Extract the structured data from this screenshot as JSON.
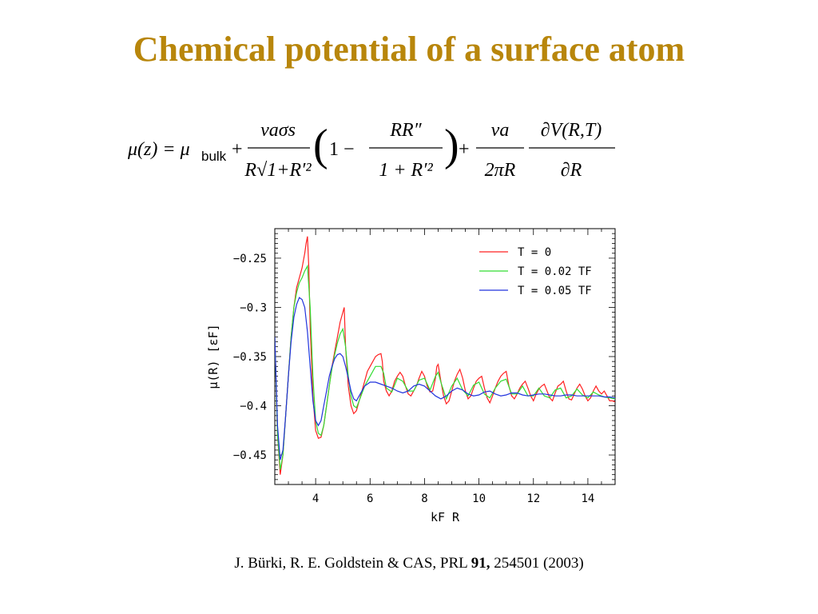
{
  "slide": {
    "title": "Chemical potential of a surface atom"
  },
  "equation": {
    "lhs": "μ(z) = μ",
    "bulk_sub": "bulk",
    "plus": "+",
    "frac1_num": "vaσs",
    "frac1_den": "R√1+R′²",
    "paren_open": "(",
    "one_minus": "1 −",
    "frac2_num": "RR″",
    "frac2_den": "1 + R′²",
    "paren_close": ")",
    "frac3_num": "va",
    "frac3_den": "2πR",
    "frac4_num": "∂V(R,T)",
    "frac4_den": "∂R"
  },
  "citation": {
    "authors": "J. Bürki, R. E. Goldstein & CAS, PRL ",
    "volume": "91,",
    "rest": " 254501 (2003)"
  },
  "chart_data": {
    "type": "line",
    "xlabel": "kF R",
    "ylabel": "μ(R) [εF]",
    "xlim": [
      2.5,
      15
    ],
    "ylim": [
      -0.48,
      -0.22
    ],
    "xticks": [
      4,
      6,
      8,
      10,
      12,
      14
    ],
    "yticks": [
      -0.25,
      -0.3,
      -0.35,
      -0.4,
      -0.45
    ],
    "ytick_labels": [
      "−0.25",
      "−0.3",
      "−0.35",
      "−0.4",
      "−0.45"
    ],
    "legend_position": "top-right",
    "series": [
      {
        "name": "T = 0",
        "color": "#ff2020",
        "x": [
          2.5,
          2.6,
          2.7,
          2.8,
          2.9,
          3.0,
          3.1,
          3.2,
          3.3,
          3.4,
          3.5,
          3.6,
          3.65,
          3.7,
          3.75,
          3.8,
          3.9,
          4.0,
          4.1,
          4.2,
          4.3,
          4.4,
          4.5,
          4.6,
          4.7,
          4.8,
          4.9,
          5.0,
          5.05,
          5.1,
          5.2,
          5.3,
          5.4,
          5.5,
          5.6,
          5.7,
          5.8,
          5.9,
          6.0,
          6.1,
          6.2,
          6.3,
          6.4,
          6.45,
          6.5,
          6.6,
          6.7,
          6.8,
          6.9,
          7.0,
          7.1,
          7.2,
          7.3,
          7.4,
          7.5,
          7.6,
          7.7,
          7.8,
          7.9,
          8.0,
          8.1,
          8.2,
          8.3,
          8.4,
          8.45,
          8.5,
          8.6,
          8.7,
          8.8,
          8.9,
          9.0,
          9.1,
          9.2,
          9.3,
          9.4,
          9.5,
          9.6,
          9.7,
          9.8,
          9.9,
          10.0,
          10.1,
          10.2,
          10.3,
          10.4,
          10.5,
          10.6,
          10.7,
          10.8,
          10.9,
          11.0,
          11.1,
          11.2,
          11.3,
          11.4,
          11.5,
          11.6,
          11.7,
          11.8,
          11.9,
          12.0,
          12.1,
          12.2,
          12.3,
          12.4,
          12.5,
          12.6,
          12.7,
          12.8,
          12.9,
          13.0,
          13.1,
          13.2,
          13.3,
          13.4,
          13.5,
          13.6,
          13.7,
          13.8,
          13.9,
          14.0,
          14.1,
          14.2,
          14.3,
          14.4,
          14.5,
          14.6,
          14.7,
          14.8,
          14.9,
          15.0
        ],
        "y": [
          -0.33,
          -0.43,
          -0.47,
          -0.45,
          -0.41,
          -0.37,
          -0.33,
          -0.3,
          -0.28,
          -0.27,
          -0.26,
          -0.245,
          -0.235,
          -0.228,
          -0.26,
          -0.32,
          -0.39,
          -0.425,
          -0.433,
          -0.432,
          -0.42,
          -0.4,
          -0.38,
          -0.36,
          -0.345,
          -0.33,
          -0.315,
          -0.305,
          -0.3,
          -0.34,
          -0.38,
          -0.4,
          -0.408,
          -0.405,
          -0.395,
          -0.385,
          -0.375,
          -0.365,
          -0.36,
          -0.355,
          -0.35,
          -0.348,
          -0.347,
          -0.355,
          -0.375,
          -0.385,
          -0.39,
          -0.385,
          -0.375,
          -0.37,
          -0.366,
          -0.37,
          -0.38,
          -0.388,
          -0.39,
          -0.385,
          -0.38,
          -0.372,
          -0.365,
          -0.37,
          -0.38,
          -0.386,
          -0.385,
          -0.372,
          -0.36,
          -0.358,
          -0.375,
          -0.39,
          -0.398,
          -0.395,
          -0.385,
          -0.375,
          -0.368,
          -0.363,
          -0.372,
          -0.385,
          -0.393,
          -0.39,
          -0.382,
          -0.375,
          -0.372,
          -0.37,
          -0.382,
          -0.392,
          -0.397,
          -0.39,
          -0.382,
          -0.375,
          -0.37,
          -0.367,
          -0.365,
          -0.38,
          -0.39,
          -0.393,
          -0.388,
          -0.382,
          -0.378,
          -0.375,
          -0.382,
          -0.39,
          -0.395,
          -0.388,
          -0.383,
          -0.38,
          -0.378,
          -0.385,
          -0.392,
          -0.395,
          -0.387,
          -0.38,
          -0.378,
          -0.375,
          -0.385,
          -0.393,
          -0.394,
          -0.388,
          -0.382,
          -0.378,
          -0.383,
          -0.39,
          -0.395,
          -0.392,
          -0.385,
          -0.38,
          -0.385,
          -0.388,
          -0.385,
          -0.39,
          -0.395,
          -0.395,
          -0.396
        ]
      },
      {
        "name": "T = 0.02 TF",
        "color": "#33dd33",
        "x": [
          2.5,
          2.6,
          2.7,
          2.8,
          2.9,
          3.0,
          3.1,
          3.2,
          3.3,
          3.4,
          3.5,
          3.6,
          3.7,
          3.8,
          3.9,
          4.0,
          4.1,
          4.2,
          4.3,
          4.4,
          4.5,
          4.6,
          4.7,
          4.8,
          4.9,
          5.0,
          5.1,
          5.2,
          5.3,
          5.4,
          5.5,
          5.6,
          5.8,
          6.0,
          6.2,
          6.4,
          6.5,
          6.6,
          6.8,
          7.0,
          7.2,
          7.4,
          7.6,
          7.8,
          8.0,
          8.2,
          8.4,
          8.5,
          8.6,
          8.8,
          9.0,
          9.2,
          9.4,
          9.6,
          9.8,
          10.0,
          10.2,
          10.4,
          10.6,
          10.8,
          11.0,
          11.2,
          11.4,
          11.6,
          11.8,
          12.0,
          12.2,
          12.4,
          12.6,
          12.8,
          13.0,
          13.2,
          13.4,
          13.6,
          13.8,
          14.0,
          14.2,
          14.4,
          14.6,
          14.8,
          15.0
        ],
        "y": [
          -0.33,
          -0.43,
          -0.465,
          -0.45,
          -0.41,
          -0.37,
          -0.33,
          -0.3,
          -0.285,
          -0.275,
          -0.27,
          -0.263,
          -0.258,
          -0.3,
          -0.37,
          -0.415,
          -0.428,
          -0.43,
          -0.42,
          -0.4,
          -0.38,
          -0.362,
          -0.348,
          -0.336,
          -0.327,
          -0.322,
          -0.34,
          -0.37,
          -0.39,
          -0.4,
          -0.402,
          -0.395,
          -0.38,
          -0.37,
          -0.36,
          -0.36,
          -0.367,
          -0.382,
          -0.386,
          -0.372,
          -0.375,
          -0.385,
          -0.385,
          -0.374,
          -0.372,
          -0.384,
          -0.37,
          -0.366,
          -0.376,
          -0.393,
          -0.38,
          -0.372,
          -0.384,
          -0.39,
          -0.379,
          -0.376,
          -0.388,
          -0.392,
          -0.382,
          -0.375,
          -0.373,
          -0.388,
          -0.388,
          -0.38,
          -0.39,
          -0.39,
          -0.382,
          -0.39,
          -0.392,
          -0.384,
          -0.382,
          -0.392,
          -0.39,
          -0.383,
          -0.389,
          -0.392,
          -0.386,
          -0.389,
          -0.391,
          -0.392,
          -0.393
        ]
      },
      {
        "name": "T = 0.05 TF",
        "color": "#2233dd",
        "x": [
          2.5,
          2.6,
          2.7,
          2.8,
          2.9,
          3.0,
          3.1,
          3.2,
          3.3,
          3.4,
          3.5,
          3.6,
          3.7,
          3.8,
          3.9,
          4.0,
          4.1,
          4.2,
          4.3,
          4.4,
          4.5,
          4.6,
          4.7,
          4.8,
          4.9,
          5.0,
          5.1,
          5.2,
          5.3,
          5.4,
          5.5,
          5.6,
          5.8,
          6.0,
          6.2,
          6.4,
          6.6,
          6.8,
          7.0,
          7.2,
          7.4,
          7.6,
          7.8,
          8.0,
          8.2,
          8.4,
          8.6,
          8.8,
          9.0,
          9.2,
          9.4,
          9.6,
          9.8,
          10.0,
          10.2,
          10.4,
          10.6,
          10.8,
          11.0,
          11.2,
          11.4,
          11.6,
          11.8,
          12.0,
          12.2,
          12.4,
          12.6,
          12.8,
          13.0,
          13.2,
          13.4,
          13.6,
          13.8,
          14.0,
          14.2,
          14.4,
          14.6,
          14.8,
          15.0
        ],
        "y": [
          -0.33,
          -0.42,
          -0.455,
          -0.445,
          -0.41,
          -0.37,
          -0.335,
          -0.31,
          -0.297,
          -0.29,
          -0.292,
          -0.3,
          -0.325,
          -0.36,
          -0.395,
          -0.415,
          -0.42,
          -0.415,
          -0.4,
          -0.385,
          -0.37,
          -0.36,
          -0.352,
          -0.348,
          -0.347,
          -0.35,
          -0.36,
          -0.372,
          -0.385,
          -0.393,
          -0.395,
          -0.39,
          -0.38,
          -0.376,
          -0.376,
          -0.378,
          -0.38,
          -0.382,
          -0.385,
          -0.387,
          -0.385,
          -0.38,
          -0.378,
          -0.38,
          -0.385,
          -0.39,
          -0.393,
          -0.39,
          -0.385,
          -0.382,
          -0.384,
          -0.388,
          -0.39,
          -0.389,
          -0.386,
          -0.385,
          -0.388,
          -0.39,
          -0.389,
          -0.387,
          -0.387,
          -0.389,
          -0.39,
          -0.389,
          -0.388,
          -0.388,
          -0.389,
          -0.39,
          -0.39,
          -0.389,
          -0.389,
          -0.39,
          -0.39,
          -0.39,
          -0.39,
          -0.39,
          -0.391,
          -0.391,
          -0.392
        ]
      }
    ]
  }
}
